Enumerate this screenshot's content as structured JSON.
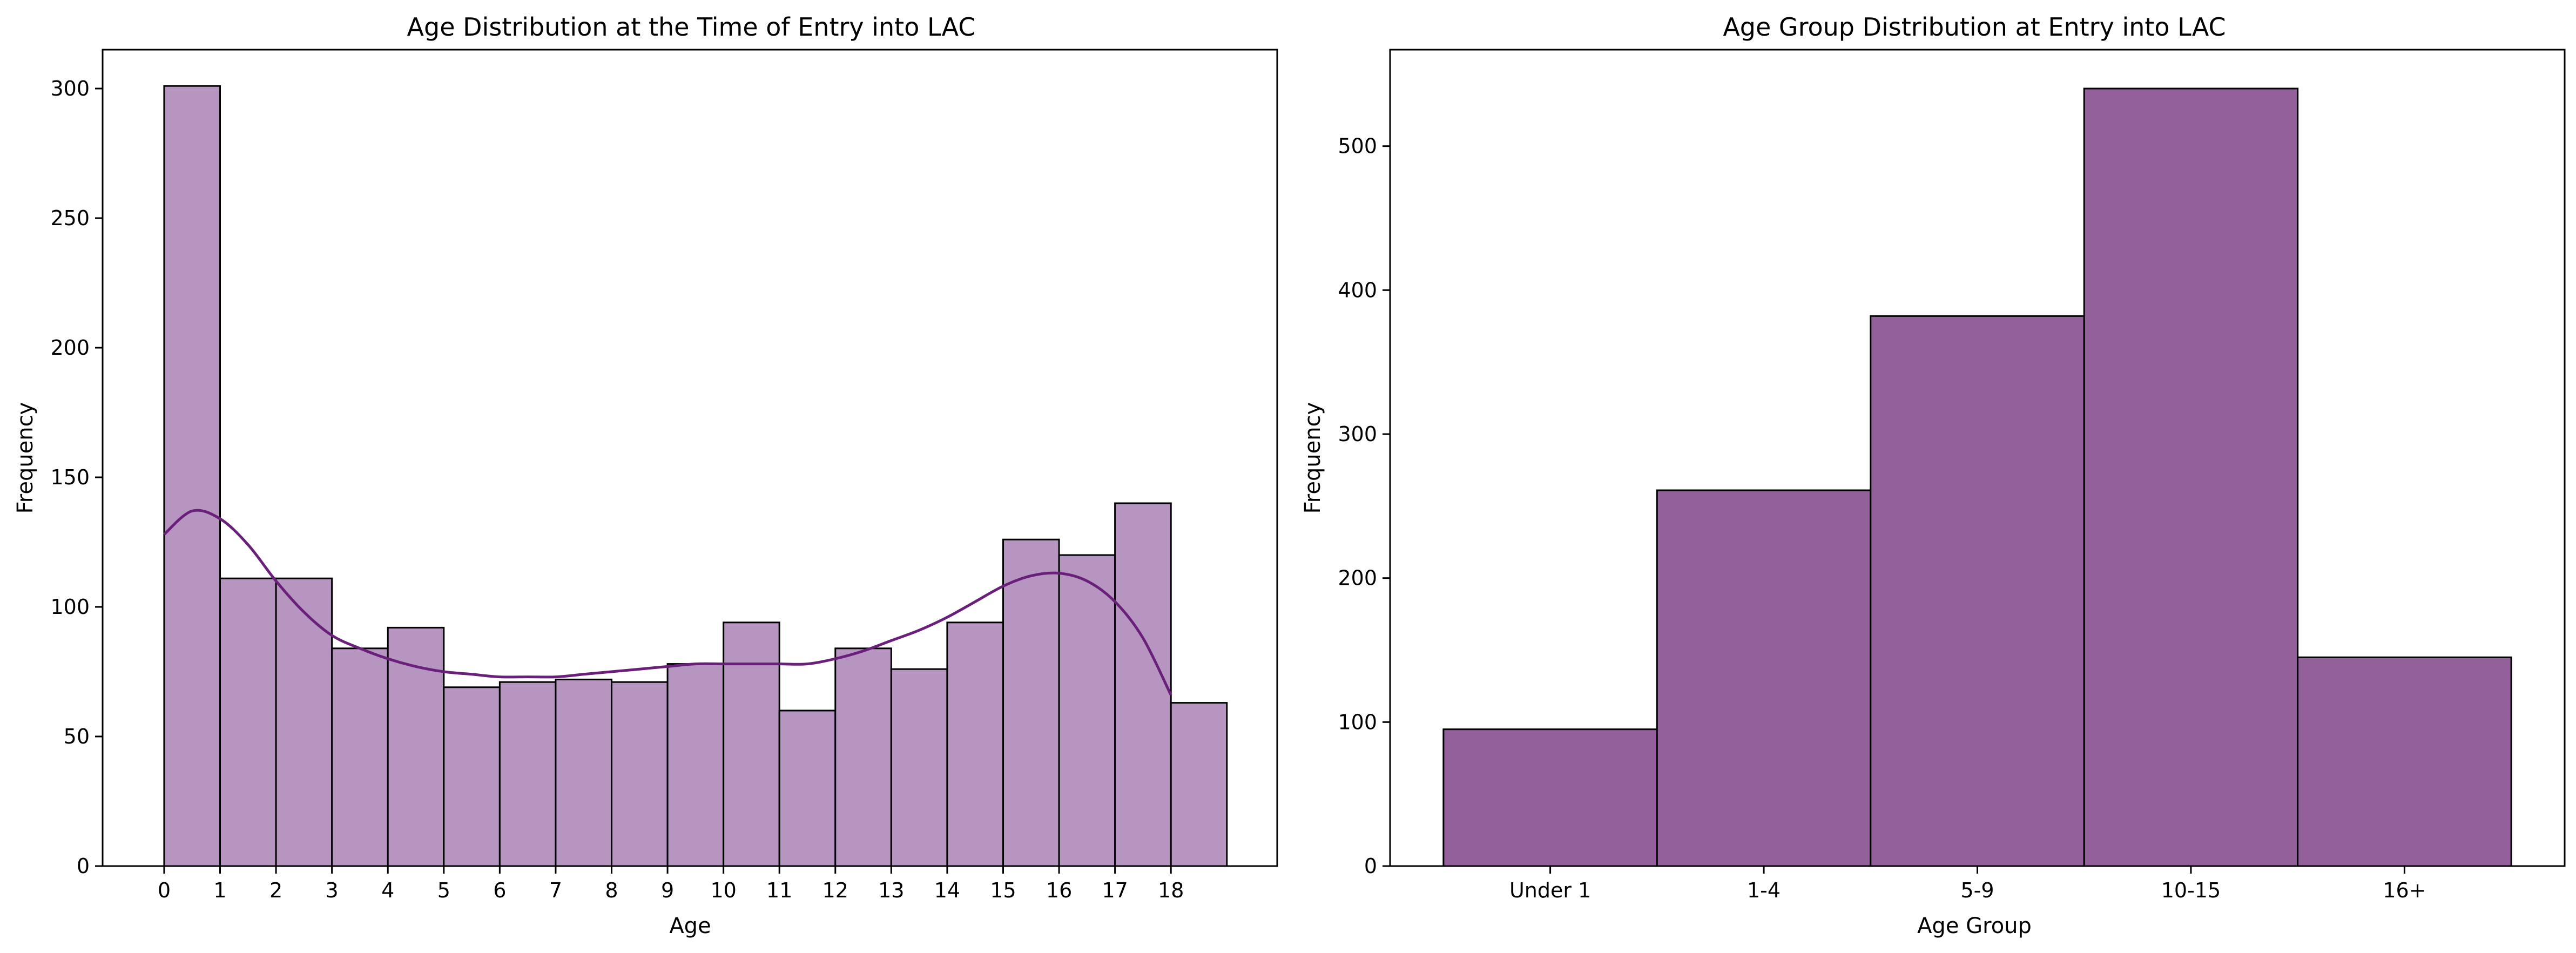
{
  "chart_data": [
    {
      "type": "bar",
      "subtype": "histogram-with-kde",
      "title": "Age Distribution at the Time of Entry into LAC",
      "xlabel": "Age",
      "ylabel": "Frequency",
      "x_ticks": [
        "0",
        "1",
        "2",
        "3",
        "4",
        "5",
        "6",
        "7",
        "8",
        "9",
        "10",
        "11",
        "12",
        "13",
        "14",
        "15",
        "16",
        "17",
        "18"
      ],
      "y_ticks": [
        "0",
        "50",
        "100",
        "150",
        "200",
        "250",
        "300"
      ],
      "ylim": [
        0,
        315
      ],
      "xlim": [
        -1.1,
        19.9
      ],
      "bin_edges": [
        -1,
        0,
        1,
        2,
        3,
        4,
        5,
        6,
        7,
        8,
        9,
        10,
        11,
        12,
        13,
        14,
        15,
        16,
        17,
        18,
        19
      ],
      "values": [
        0,
        301,
        111,
        111,
        84,
        92,
        69,
        71,
        72,
        71,
        78,
        94,
        60,
        84,
        76,
        94,
        126,
        120,
        140,
        63
      ],
      "kde": {
        "x": [
          0,
          0.5,
          1,
          1.5,
          2,
          2.5,
          3,
          3.5,
          4,
          4.5,
          5,
          5.5,
          6,
          6.5,
          7,
          7.5,
          8,
          8.5,
          9,
          9.5,
          10,
          10.5,
          11,
          11.5,
          12,
          12.5,
          13,
          13.5,
          14,
          14.5,
          15,
          15.5,
          16,
          16.5,
          17,
          17.5,
          18
        ],
        "y": [
          128,
          137,
          134,
          124,
          110,
          98,
          89,
          84,
          80,
          77,
          75,
          74,
          73,
          73,
          73,
          74,
          75,
          76,
          77,
          78,
          78,
          78,
          78,
          78,
          80,
          83,
          87,
          91,
          96,
          102,
          108,
          112,
          113,
          110,
          102,
          88,
          66
        ]
      },
      "bar_color": "#b695c0",
      "line_color": "#6a1f7a",
      "grid": false,
      "legend": "none"
    },
    {
      "type": "bar",
      "subtype": "histogram",
      "title": "Age Group Distribution at Entry into LAC",
      "xlabel": "Age Group",
      "ylabel": "Frequency",
      "categories": [
        "Under 1",
        "1-4",
        "5-9",
        "10-15",
        "16+"
      ],
      "values": [
        95,
        261,
        382,
        540,
        145
      ],
      "y_ticks": [
        "0",
        "100",
        "200",
        "300",
        "400",
        "500"
      ],
      "ylim": [
        0,
        567
      ],
      "bar_color": "#93609c",
      "grid": false,
      "legend": "none"
    }
  ]
}
